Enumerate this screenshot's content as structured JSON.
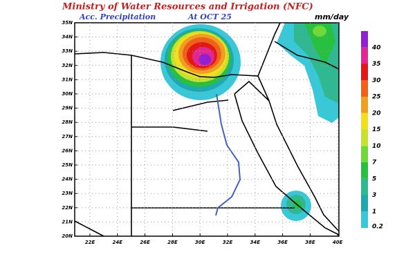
{
  "header": {
    "title": "Ministry of Water Resources and Irrigation (NFC)",
    "subtitle": "Acc. Precipitation",
    "date": "At OCT 25",
    "units": "mm/day"
  },
  "axes": {
    "lat_labels": [
      "35N",
      "34N",
      "33N",
      "32N",
      "31N",
      "30N",
      "29N",
      "28N",
      "27N",
      "26N",
      "25N",
      "24N",
      "23N",
      "22N",
      "21N",
      "20N"
    ],
    "lon_labels": [
      "22E",
      "24E",
      "26E",
      "28E",
      "30E",
      "32E",
      "34E",
      "36E",
      "38E",
      "40E"
    ]
  },
  "colorbar": {
    "labels": [
      0.2,
      1,
      3,
      5,
      7,
      10,
      15,
      20,
      25,
      30,
      35,
      40
    ],
    "colors": [
      "#38c8d8",
      "#20a8b0",
      "#30b890",
      "#28c040",
      "#70d838",
      "#c8e030",
      "#f0e020",
      "#f0a020",
      "#f06018",
      "#e01818",
      "#e02890",
      "#9020d0"
    ]
  }
}
